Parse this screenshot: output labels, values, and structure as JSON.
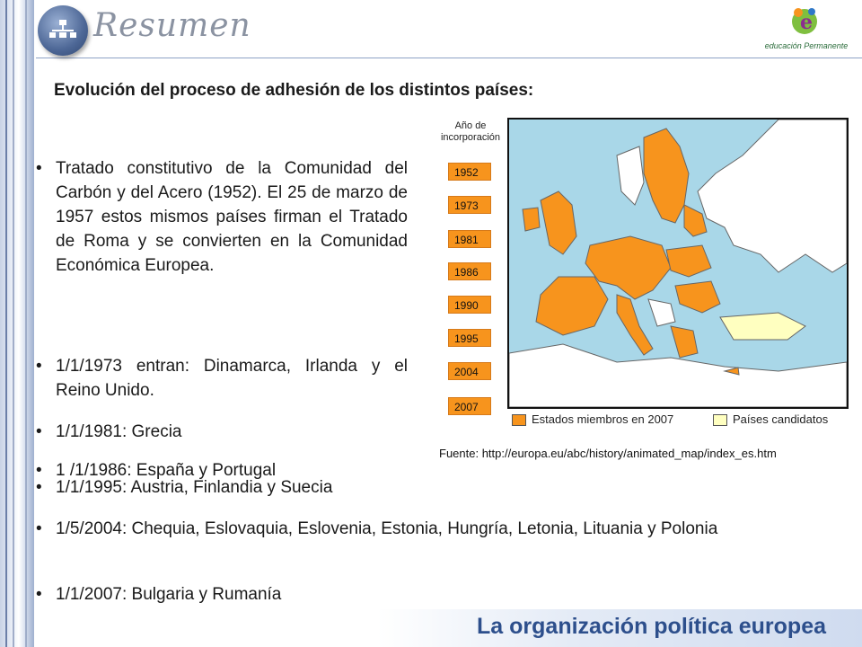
{
  "header": {
    "title": "Resumen",
    "logo_text": "educación Permanente"
  },
  "main": {
    "title": "Evolución del proceso de adhesión de los distintos países:",
    "bullets": [
      "Tratado constitutivo de la Comunidad del Carbón y del Acero (1952). El 25 de marzo de 1957 estos mismos países firman el Tratado de Roma y se convierten en la Comunidad Económica Europea.",
      "1/1/1973 entran: Dinamarca, Irlanda y el Reino Unido.",
      "1/1/1981: Grecia",
      "1 /1/1986: España y Portugal",
      "1/1/1995: Austria, Finlandia y Suecia",
      "1/5/2004: Chequia, Eslovaquia, Eslovenia, Estonia, Hungría, Letonia, Lituania y Polonia",
      "1/1/2007: Bulgaria y Rumanía"
    ],
    "bullet_char": "•"
  },
  "map": {
    "label": "Año de incorporación",
    "years": [
      "1952",
      "1973",
      "1981",
      "1986",
      "1990",
      "1995",
      "2004",
      "2007"
    ],
    "legend_members": "Estados miembros en 2007",
    "legend_candidates": "Países candidatos",
    "source": "Fuente: http://europa.eu/abc/history/animated_map/index_es.htm",
    "colors": {
      "member": "#f7941d",
      "candidate": "#ffffc0",
      "sea": "#a9d7e8",
      "other": "#ffffff"
    }
  },
  "footer": {
    "text": "La organización política europea"
  }
}
